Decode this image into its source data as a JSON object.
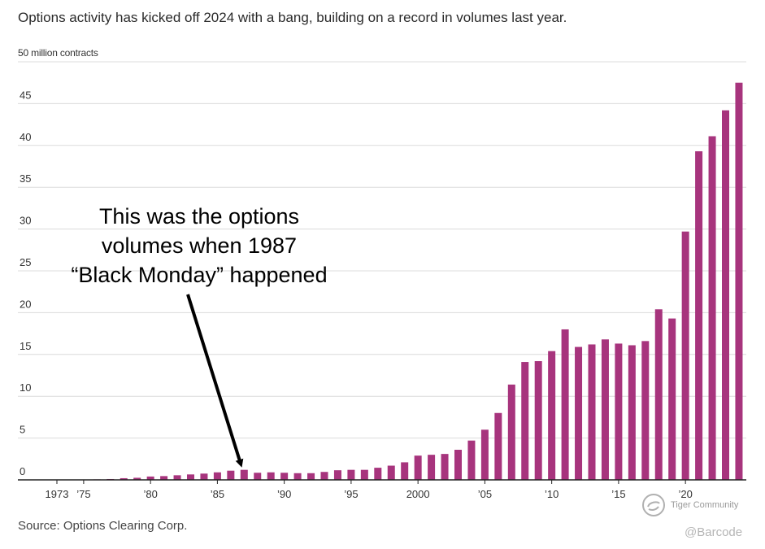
{
  "chart_data": {
    "type": "bar",
    "title": "Options activity has kicked off 2024 with a bang, building on a record in volumes last year.",
    "ylabel": "50 million contracts",
    "xlabel": "",
    "ylim": [
      0,
      50
    ],
    "yticks": [
      0,
      5,
      10,
      15,
      20,
      25,
      30,
      35,
      40,
      45
    ],
    "grid": true,
    "bar_color": "#a7347d",
    "x_tick_labels": [
      {
        "year": 1973,
        "label": "1973"
      },
      {
        "year": 1975,
        "label": "'75"
      },
      {
        "year": 1980,
        "label": "'80"
      },
      {
        "year": 1985,
        "label": "'85"
      },
      {
        "year": 1990,
        "label": "'90"
      },
      {
        "year": 1995,
        "label": "'95"
      },
      {
        "year": 2000,
        "label": "2000"
      },
      {
        "year": 2005,
        "label": "'05"
      },
      {
        "year": 2010,
        "label": "'10"
      },
      {
        "year": 2015,
        "label": "'15"
      },
      {
        "year": 2020,
        "label": "'20"
      }
    ],
    "categories": [
      1973,
      1974,
      1975,
      1976,
      1977,
      1978,
      1979,
      1980,
      1981,
      1982,
      1983,
      1984,
      1985,
      1986,
      1987,
      1988,
      1989,
      1990,
      1991,
      1992,
      1993,
      1994,
      1995,
      1996,
      1997,
      1998,
      1999,
      2000,
      2001,
      2002,
      2003,
      2004,
      2005,
      2006,
      2007,
      2008,
      2009,
      2010,
      2011,
      2012,
      2013,
      2014,
      2015,
      2016,
      2017,
      2018,
      2019,
      2020,
      2021,
      2022,
      2023,
      2024
    ],
    "values": [
      0.01,
      0.02,
      0.04,
      0.06,
      0.1,
      0.2,
      0.25,
      0.4,
      0.45,
      0.55,
      0.65,
      0.75,
      0.9,
      1.1,
      1.2,
      0.85,
      0.9,
      0.85,
      0.8,
      0.8,
      0.95,
      1.15,
      1.2,
      1.2,
      1.45,
      1.7,
      2.1,
      2.9,
      3.0,
      3.1,
      3.6,
      4.7,
      6.0,
      8.0,
      11.4,
      14.1,
      14.2,
      15.4,
      18.0,
      15.9,
      16.2,
      16.8,
      16.3,
      16.1,
      16.6,
      20.4,
      19.3,
      29.7,
      39.3,
      41.1,
      44.2,
      47.5
    ]
  },
  "annotation": {
    "lines": [
      "This was the options",
      "volumes when 1987",
      "“Black Monday” happened"
    ]
  },
  "source": "Source: Options Clearing Corp.",
  "watermark": {
    "brand": "Tiger Community",
    "handle": "@Barcode"
  }
}
